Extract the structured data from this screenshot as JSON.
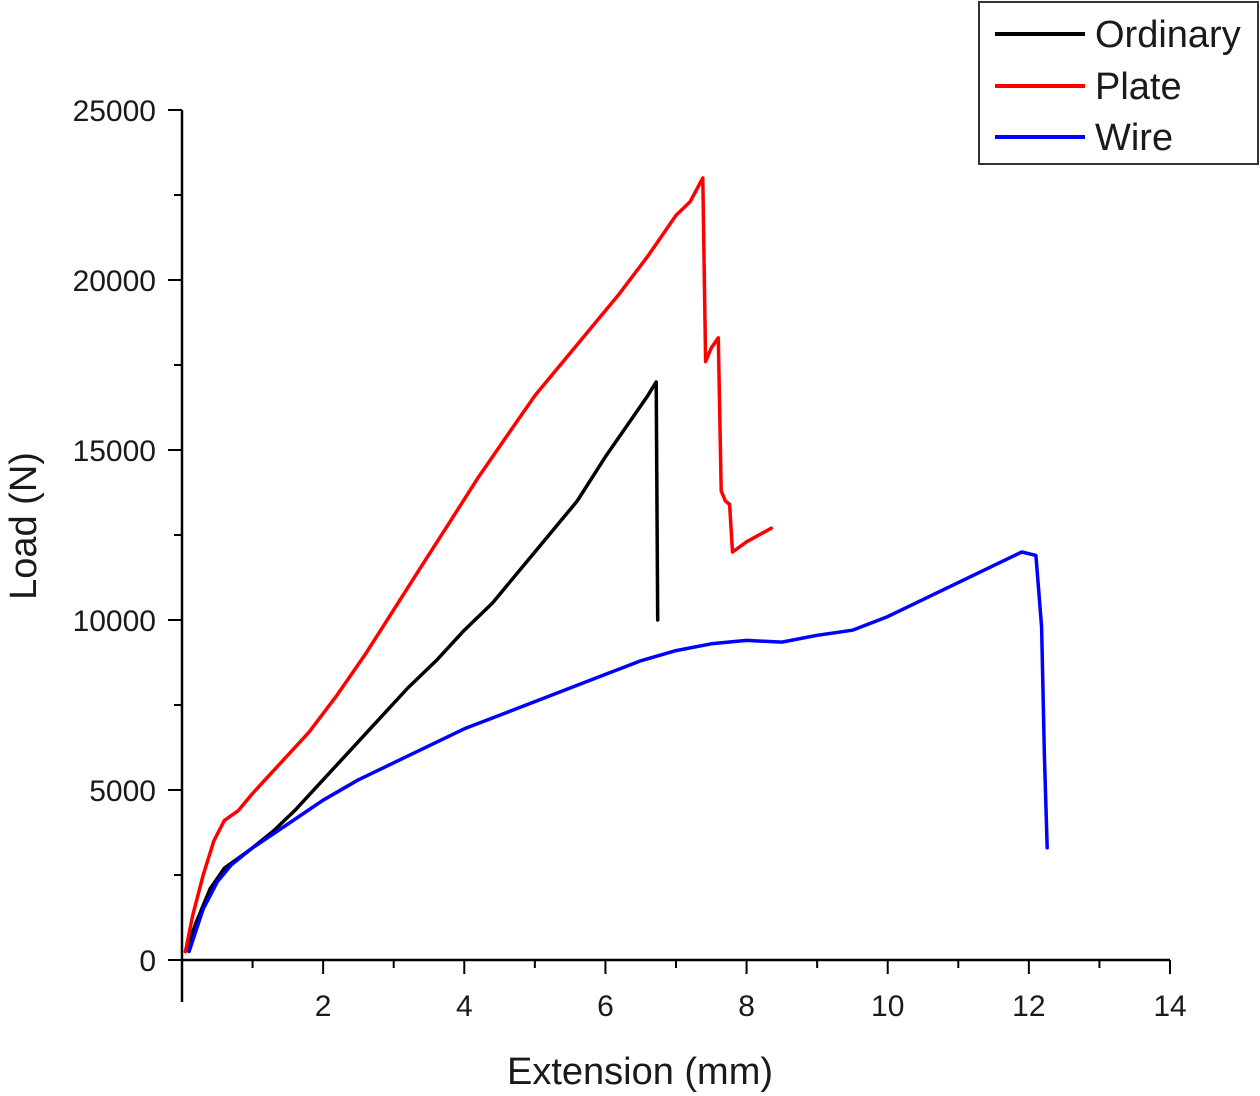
{
  "chart_data": {
    "type": "line",
    "xlabel": "Extension (mm)",
    "ylabel": "Load (N)",
    "xlim": [
      0,
      14
    ],
    "ylim": [
      0,
      25000
    ],
    "x_ticks": [
      2,
      4,
      6,
      8,
      10,
      12,
      14
    ],
    "y_ticks": [
      0,
      5000,
      10000,
      15000,
      20000,
      25000
    ],
    "legend_position": "top-right",
    "grid": false,
    "series": [
      {
        "name": "Ordinary",
        "color": "#000000",
        "points": [
          [
            0.05,
            250
          ],
          [
            0.2,
            1100
          ],
          [
            0.4,
            2100
          ],
          [
            0.6,
            2700
          ],
          [
            0.8,
            3000
          ],
          [
            1.0,
            3300
          ],
          [
            1.3,
            3800
          ],
          [
            1.6,
            4400
          ],
          [
            2.0,
            5300
          ],
          [
            2.4,
            6200
          ],
          [
            2.8,
            7100
          ],
          [
            3.2,
            8000
          ],
          [
            3.6,
            8800
          ],
          [
            4.0,
            9700
          ],
          [
            4.4,
            10500
          ],
          [
            4.8,
            11500
          ],
          [
            5.2,
            12500
          ],
          [
            5.6,
            13500
          ],
          [
            6.0,
            14800
          ],
          [
            6.4,
            16000
          ],
          [
            6.6,
            16600
          ],
          [
            6.72,
            17000
          ],
          [
            6.74,
            10000
          ]
        ]
      },
      {
        "name": "Plate",
        "color": "#ff0000",
        "points": [
          [
            0.05,
            250
          ],
          [
            0.15,
            1300
          ],
          [
            0.3,
            2500
          ],
          [
            0.45,
            3500
          ],
          [
            0.6,
            4100
          ],
          [
            0.8,
            4400
          ],
          [
            1.0,
            4900
          ],
          [
            1.4,
            5800
          ],
          [
            1.8,
            6700
          ],
          [
            2.2,
            7800
          ],
          [
            2.6,
            9000
          ],
          [
            3.0,
            10300
          ],
          [
            3.4,
            11600
          ],
          [
            3.8,
            12900
          ],
          [
            4.2,
            14200
          ],
          [
            4.6,
            15400
          ],
          [
            5.0,
            16600
          ],
          [
            5.4,
            17600
          ],
          [
            5.8,
            18600
          ],
          [
            6.2,
            19600
          ],
          [
            6.6,
            20700
          ],
          [
            7.0,
            21900
          ],
          [
            7.2,
            22300
          ],
          [
            7.38,
            23000
          ],
          [
            7.42,
            17600
          ],
          [
            7.5,
            18000
          ],
          [
            7.6,
            18300
          ],
          [
            7.64,
            13800
          ],
          [
            7.7,
            13500
          ],
          [
            7.76,
            13400
          ],
          [
            7.8,
            12000
          ],
          [
            8.0,
            12300
          ],
          [
            8.35,
            12700
          ]
        ]
      },
      {
        "name": "Wire",
        "color": "#0000ff",
        "points": [
          [
            0.1,
            250
          ],
          [
            0.3,
            1500
          ],
          [
            0.5,
            2300
          ],
          [
            0.7,
            2800
          ],
          [
            1.0,
            3300
          ],
          [
            1.5,
            4000
          ],
          [
            2.0,
            4700
          ],
          [
            2.5,
            5300
          ],
          [
            3.0,
            5800
          ],
          [
            3.5,
            6300
          ],
          [
            4.0,
            6800
          ],
          [
            4.5,
            7200
          ],
          [
            5.0,
            7600
          ],
          [
            5.5,
            8000
          ],
          [
            6.0,
            8400
          ],
          [
            6.5,
            8800
          ],
          [
            7.0,
            9100
          ],
          [
            7.5,
            9300
          ],
          [
            8.0,
            9400
          ],
          [
            8.5,
            9350
          ],
          [
            9.0,
            9550
          ],
          [
            9.5,
            9700
          ],
          [
            10.0,
            10100
          ],
          [
            10.5,
            10600
          ],
          [
            11.0,
            11100
          ],
          [
            11.5,
            11600
          ],
          [
            11.9,
            12000
          ],
          [
            12.1,
            11900
          ],
          [
            12.18,
            9800
          ],
          [
            12.22,
            6000
          ],
          [
            12.26,
            3300
          ]
        ]
      }
    ]
  }
}
